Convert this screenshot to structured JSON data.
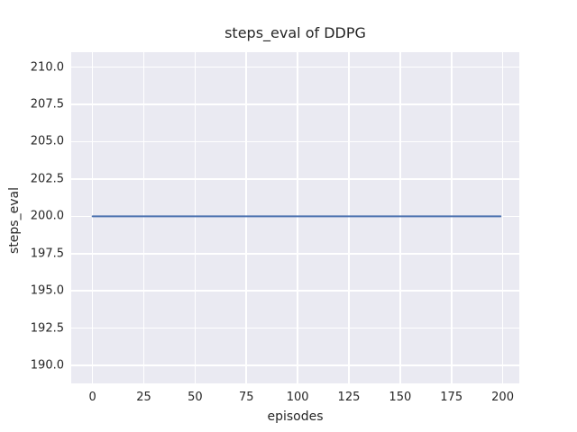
{
  "chart_data": {
    "type": "line",
    "title": "steps_eval of DDPG",
    "xlabel": "episodes",
    "ylabel": "steps_eval",
    "x_ticks": [
      "0",
      "25",
      "50",
      "75",
      "100",
      "125",
      "150",
      "175",
      "200"
    ],
    "y_ticks": [
      "190.0",
      "192.5",
      "195.0",
      "197.5",
      "200.0",
      "202.5",
      "205.0",
      "207.5",
      "210.0"
    ],
    "xlim": [
      -10.4,
      208.1
    ],
    "ylim": [
      188.8,
      211.0
    ],
    "grid": true,
    "legend": "none",
    "series": [
      {
        "name": "DDPG",
        "color": "#4c72b0",
        "x": [
          0,
          199
        ],
        "y": [
          200,
          200
        ],
        "note": "constant steps_eval of 200 for all 200 evaluation episodes"
      }
    ],
    "styles": {
      "figure_bg": "#ffffff",
      "panel_bg": "#eaeaf2",
      "grid_color": "#ffffff",
      "text_color": "#262626",
      "accent": "#4c72b0"
    }
  }
}
